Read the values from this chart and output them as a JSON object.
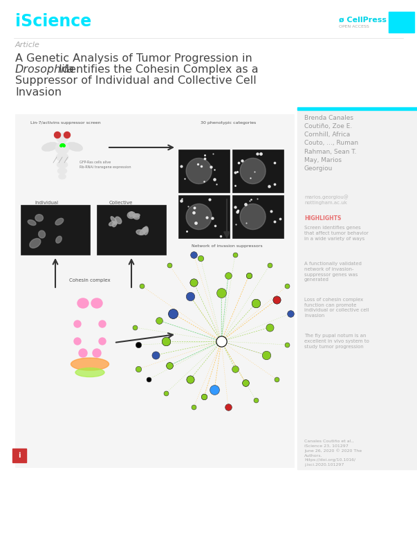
{
  "background_color": "#ffffff",
  "page_width": 6.03,
  "page_height": 7.83,
  "dpi": 100,
  "iscience_color": "#00e5ff",
  "cellpress_color": "#00d4e8",
  "article_label": "Article",
  "article_label_color": "#aaaaaa",
  "title_line1": "A Genetic Analysis of Tumor Progression in",
  "title_line2_italic": "Drosophila",
  "title_line2_normal": " Identifies the Cohesin Complex as a",
  "title_line3": "Suppressor of Individual and Collective Cell",
  "title_line4": "Invasion",
  "title_color": "#444444",
  "title_fontsize": 11.5,
  "authors": "Brenda Canales\nCoutiño, Zoe E.\nCornhill, Africa\nCouto, ..., Ruman\nRahman, Sean T.\nMay, Marios\nGeorgiou",
  "authors_color": "#999999",
  "authors_fontsize": 6.5,
  "email": "marios.georgiou@\nnottingham.ac.uk",
  "email_color": "#bbbbbb",
  "email_fontsize": 5.0,
  "highlights_label": "HIGHLIGHTS",
  "highlights_color": "#e87070",
  "highlights_fontsize": 5.5,
  "highlight1": "Screen identifies genes\nthat affect tumor behavior\nin a wide variety of ways",
  "highlight2": "A functionally validated\nnetwork of invasion-\nsuppressor genes was\ngenerated",
  "highlight3": "Loss of cohesin complex\nfunction can promote\nindividual or collective cell\ninvasion",
  "highlight4": "The fly pupal notum is an\nexcellent in vivo system to\nstudy tumor progression",
  "highlights_text_color": "#aaaaaa",
  "highlights_text_fontsize": 5.0,
  "footer_text": "Canales Coutiño et al.,\niScience 23, 101297\nJune 26, 2020 © 2020 The\nAuthors.\nhttps://doi.org/10.1016/\nj.isci.2020.101297",
  "footer_color": "#aaaaaa",
  "footer_fontsize": 4.5,
  "sidebar_bg": "#f2f2f2",
  "main_fig_bg": "#f5f5f5",
  "cyan_bar_color": "#00e5ff",
  "figure_border_color": "#cccccc",
  "figure_label_color": "#555555",
  "figure_label_fontsize": 4.5,
  "arrow_color": "#333333",
  "network_label": "Network of invasion suppressors",
  "screen_label": "Lin-7/activins suppressor screen",
  "pheno_label": "30 phenotypic categories",
  "individual_label": "Individual",
  "collective_label": "Collective",
  "cohesin_label": "Cohesin complex"
}
